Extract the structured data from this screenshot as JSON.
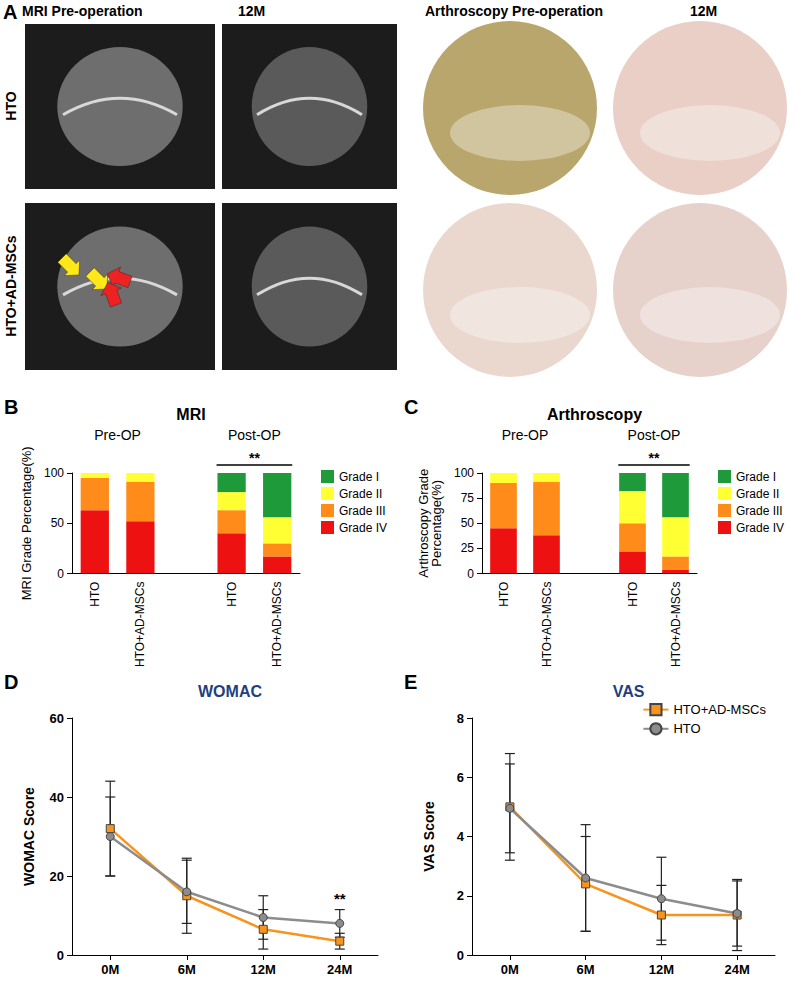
{
  "panel_a": {
    "label": "A",
    "columns": [
      "MRI Pre-operation",
      "12M",
      "Arthroscopy Pre-operation",
      "12M"
    ],
    "rows": [
      "HTO",
      "HTO+AD-MSCs"
    ]
  },
  "chart_data": [
    {
      "panel": "B",
      "type": "bar",
      "stacked": true,
      "title": "MRI",
      "y_label": "MRI Grade Percentage(%)",
      "categories": [
        "HTO",
        "HTO+AD-MSCs",
        null,
        "HTO",
        "HTO+AD-MSCs"
      ],
      "groups": [
        "Pre-OP",
        "Post-OP"
      ],
      "annotations": [
        {
          "text": "**",
          "group": "Post-OP"
        }
      ],
      "ylim": [
        0,
        100
      ],
      "yticks": [
        0,
        50,
        100
      ],
      "legend": "right",
      "series": [
        {
          "name": "Grade I",
          "color": "#1f9a3a",
          "values": [
            0,
            0,
            null,
            19,
            44
          ]
        },
        {
          "name": "Grade II",
          "color": "#ffff33",
          "values": [
            5,
            9,
            null,
            18,
            26
          ]
        },
        {
          "name": "Grade III",
          "color": "#ff8c1a",
          "values": [
            32,
            39,
            null,
            23,
            13
          ]
        },
        {
          "name": "Grade IV",
          "color": "#ee1111",
          "values": [
            63,
            52,
            null,
            40,
            17
          ]
        }
      ]
    },
    {
      "panel": "C",
      "type": "bar",
      "stacked": true,
      "title": "Arthroscopy",
      "y_label": "Arthroscopy Grade\nPercentage(%)",
      "categories": [
        "HTO",
        "HTO+AD-MSCs",
        null,
        "HTO",
        "HTO+AD-MSCs"
      ],
      "groups": [
        "Pre-OP",
        "Post-OP"
      ],
      "annotations": [
        {
          "text": "**",
          "group": "Post-OP"
        }
      ],
      "ylim": [
        0,
        100
      ],
      "yticks": [
        0,
        25,
        50,
        75,
        100
      ],
      "legend": "right",
      "series": [
        {
          "name": "Grade I",
          "color": "#1f9a3a",
          "values": [
            0,
            0,
            null,
            18,
            44
          ]
        },
        {
          "name": "Grade II",
          "color": "#ffff33",
          "values": [
            10,
            9,
            null,
            32,
            39
          ]
        },
        {
          "name": "Grade III",
          "color": "#ff8c1a",
          "values": [
            45,
            53,
            null,
            28,
            13
          ]
        },
        {
          "name": "Grade IV",
          "color": "#ee1111",
          "values": [
            45,
            38,
            null,
            22,
            4
          ]
        }
      ]
    },
    {
      "panel": "D",
      "type": "line",
      "title": "WOMAC",
      "y_label": "WOMAC Score",
      "categories": [
        "0M",
        "6M",
        "12M",
        "24M"
      ],
      "ylim": [
        0,
        60
      ],
      "yticks": [
        0,
        20,
        40,
        60
      ],
      "annotations": [
        {
          "text": "**",
          "x": "24M"
        }
      ],
      "series": [
        {
          "name": "HTO+AD-MSCs",
          "color": "#f7941d",
          "marker": "square",
          "values": [
            32,
            15,
            6.5,
            3.5
          ],
          "errors": [
            12,
            9.5,
            5,
            2
          ]
        },
        {
          "name": "HTO",
          "color": "#8c8c8c",
          "marker": "circle",
          "values": [
            30,
            16,
            9.5,
            8
          ],
          "errors": [
            10,
            8,
            5.5,
            3.5
          ]
        }
      ]
    },
    {
      "panel": "E",
      "type": "line",
      "title": "VAS",
      "y_label": "VAS Score",
      "categories": [
        "0M",
        "6M",
        "12M",
        "24M"
      ],
      "ylim": [
        0,
        8
      ],
      "yticks": [
        0,
        2,
        4,
        6,
        8
      ],
      "legend": "upper right",
      "series": [
        {
          "name": "HTO+AD-MSCs",
          "color": "#f7941d",
          "marker": "square",
          "values": [
            5.0,
            2.4,
            1.35,
            1.35
          ],
          "errors": [
            1.8,
            1.6,
            1.0,
            1.2
          ]
        },
        {
          "name": "HTO",
          "color": "#8c8c8c",
          "marker": "circle",
          "values": [
            4.95,
            2.6,
            1.9,
            1.4
          ],
          "errors": [
            1.5,
            1.8,
            1.4,
            1.1
          ]
        }
      ]
    }
  ]
}
